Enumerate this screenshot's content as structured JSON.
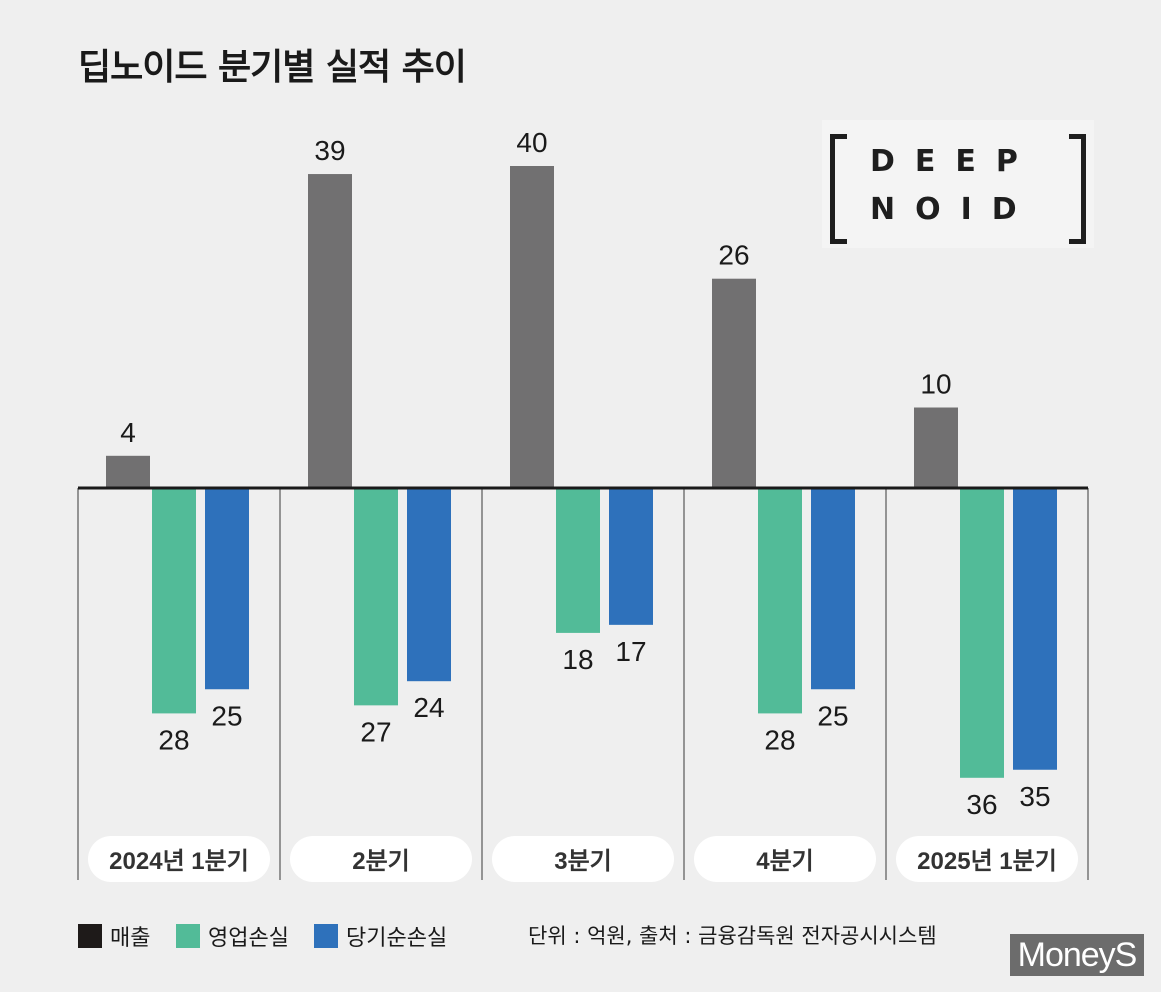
{
  "title": "딥노이드 분기별 실적 추이",
  "logo": {
    "line1": "DEEP",
    "line2": "NOID"
  },
  "watermark": "MoneyS",
  "source_note": "단위 : 억원, 출처 : 금융감독원 전자공시시스템",
  "colors": {
    "revenue": "#717071",
    "operating_loss": "#52bb98",
    "net_loss": "#2e71bb",
    "axis": "#1a1a1a"
  },
  "chart_data": {
    "type": "bar",
    "title": "딥노이드 분기별 실적 추이",
    "unit": "억원",
    "categories": [
      "2024년 1분기",
      "2분기",
      "3분기",
      "4분기",
      "2025년 1분기"
    ],
    "series": [
      {
        "name": "매출",
        "values": [
          4,
          39,
          40,
          26,
          10
        ],
        "labels": [
          "4",
          "39",
          "40",
          "26",
          "10"
        ]
      },
      {
        "name": "영업손실",
        "values": [
          -28,
          -27,
          -18,
          -28,
          -36
        ],
        "labels": [
          "28",
          "27",
          "18",
          "28",
          "36"
        ]
      },
      {
        "name": "당기순손실",
        "values": [
          -25,
          -24,
          -17,
          -25,
          -35
        ],
        "labels": [
          "25",
          "24",
          "17",
          "25",
          "35"
        ]
      }
    ],
    "ylim": [
      -40,
      40
    ],
    "legend_position": "bottom-left",
    "grid": false
  }
}
